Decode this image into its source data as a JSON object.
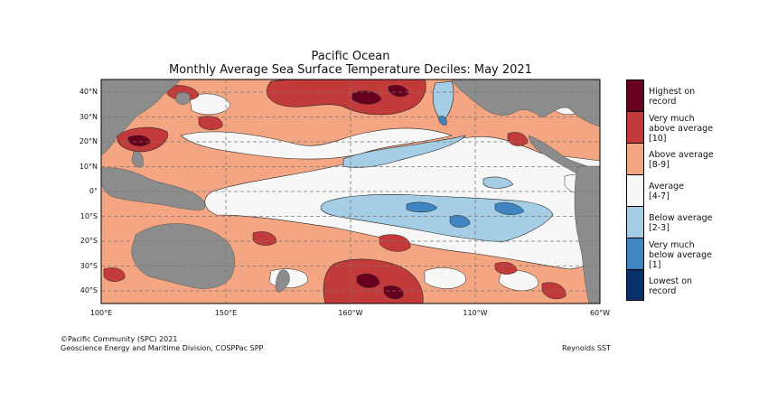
{
  "title": "Pacific Ocean",
  "subtitle": "Monthly Average Sea Surface Temperature Deciles: May 2021",
  "lat_labels": [
    "40°N",
    "30°N",
    "20°N",
    "10°N",
    "0°",
    "10°S",
    "20°S",
    "30°S",
    "40°S"
  ],
  "lon_labels": [
    "100°E",
    "150°E",
    "160°W",
    "110°W",
    "60°W"
  ],
  "legend": {
    "items": [
      {
        "lines": [
          "Highest on",
          "record"
        ],
        "color": "#67001f"
      },
      {
        "lines": [
          "Very much",
          "above average",
          "[10]"
        ],
        "color": "#c33a3a"
      },
      {
        "lines": [
          "Above average",
          "[8-9]"
        ],
        "color": "#f4a582"
      },
      {
        "lines": [
          "Average",
          "[4-7]"
        ],
        "color": "#f7f7f7"
      },
      {
        "lines": [
          "Below average",
          "[2-3]"
        ],
        "color": "#a6cde6"
      },
      {
        "lines": [
          "Very much",
          "below average",
          "[1]"
        ],
        "color": "#3f85c1"
      },
      {
        "lines": [
          "Lowest on",
          "record"
        ],
        "color": "#08306b"
      }
    ]
  },
  "colors": {
    "land": "#8c8c8c",
    "grid": "#777777",
    "contour": "#222222"
  },
  "footer": {
    "copyright": "©Pacific Community (SPC) 2021",
    "division": "Geoscience Energy and Maritime Division, COSPPac SPP",
    "source": "Reynolds SST"
  }
}
